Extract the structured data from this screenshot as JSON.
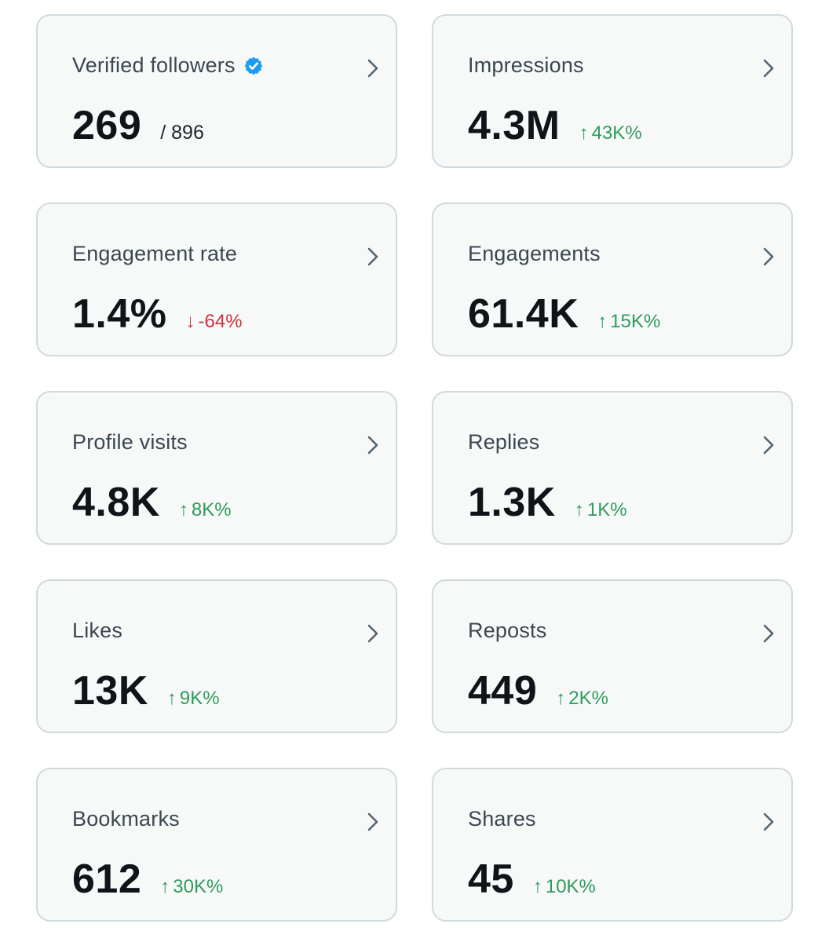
{
  "colors": {
    "card_bg": "#f7f9f9",
    "card_border": "#cfd9de",
    "positive": "#2e9b5b",
    "negative": "#c9343f",
    "verified": "#1d9bf0"
  },
  "cards": [
    {
      "title": "Verified followers",
      "value": "269",
      "total": "/ 896",
      "icon": "verified-badge-icon"
    },
    {
      "title": "Impressions",
      "value": "4.3M",
      "delta": "43K%",
      "direction": "up"
    },
    {
      "title": "Engagement rate",
      "value": "1.4%",
      "delta": "-64%",
      "direction": "down"
    },
    {
      "title": "Engagements",
      "value": "61.4K",
      "delta": "15K%",
      "direction": "up"
    },
    {
      "title": "Profile visits",
      "value": "4.8K",
      "delta": "8K%",
      "direction": "up"
    },
    {
      "title": "Replies",
      "value": "1.3K",
      "delta": "1K%",
      "direction": "up"
    },
    {
      "title": "Likes",
      "value": "13K",
      "delta": "9K%",
      "direction": "up"
    },
    {
      "title": "Reposts",
      "value": "449",
      "delta": "2K%",
      "direction": "up"
    },
    {
      "title": "Bookmarks",
      "value": "612",
      "delta": "30K%",
      "direction": "up"
    },
    {
      "title": "Shares",
      "value": "45",
      "delta": "10K%",
      "direction": "up"
    }
  ]
}
